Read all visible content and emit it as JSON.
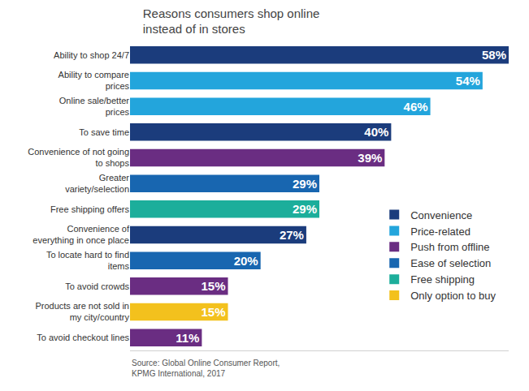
{
  "chart_data": {
    "type": "bar",
    "title": "Reasons consumers shop online instead of in stores",
    "orientation": "horizontal",
    "categories": [
      "Ability to shop 24/7",
      "Ability to compare prices",
      "Online sale/better prices",
      "To save time",
      "Convenience of not going to shops",
      "Greater variety/selection",
      "Free shipping offers",
      "Convenience of everything in once place",
      "To locate hard to find items",
      "To avoid crowds",
      "Products are not sold in my city/country",
      "To avoid checkout lines"
    ],
    "series": [
      {
        "name": "Convenience",
        "color": "#1b3c7c",
        "values": [
          58,
          null,
          null,
          40,
          null,
          null,
          null,
          27,
          null,
          null,
          null,
          null
        ],
        "value_labels": [
          "58%",
          null,
          null,
          "40%",
          null,
          null,
          null,
          "27%",
          null,
          null,
          null,
          null
        ]
      },
      {
        "name": "Price-related",
        "color": "#23a5dc",
        "values": [
          null,
          54,
          46,
          null,
          null,
          null,
          null,
          null,
          null,
          null,
          null,
          null
        ],
        "value_labels": [
          null,
          "54%",
          "46%",
          null,
          null,
          null,
          null,
          null,
          null,
          null,
          null,
          null
        ]
      },
      {
        "name": "Push from offline",
        "color": "#6a2d82",
        "values": [
          null,
          null,
          null,
          null,
          39,
          null,
          null,
          null,
          null,
          15,
          null,
          11
        ],
        "value_labels": [
          null,
          null,
          null,
          null,
          "39%",
          null,
          null,
          null,
          null,
          "15%",
          null,
          "11%"
        ]
      },
      {
        "name": "Ease of selection",
        "color": "#1866b0",
        "values": [
          null,
          null,
          null,
          null,
          null,
          29,
          null,
          null,
          20,
          null,
          null,
          null
        ],
        "value_labels": [
          null,
          null,
          null,
          null,
          null,
          "29%",
          null,
          null,
          "20%",
          null,
          null,
          null
        ]
      },
      {
        "name": "Free shipping",
        "color": "#1cae9b",
        "values": [
          null,
          null,
          null,
          null,
          null,
          null,
          29,
          null,
          null,
          null,
          null,
          null
        ],
        "value_labels": [
          null,
          null,
          null,
          null,
          null,
          null,
          "29%",
          null,
          null,
          null,
          null,
          null
        ]
      },
      {
        "name": "Only option to buy",
        "color": "#f3c11d",
        "values": [
          null,
          null,
          null,
          null,
          null,
          null,
          null,
          null,
          null,
          null,
          15,
          null
        ],
        "value_labels": [
          null,
          null,
          null,
          null,
          null,
          null,
          null,
          null,
          null,
          null,
          "15%",
          null
        ]
      }
    ],
    "xlim": [
      0,
      58
    ],
    "tick_labels": "y",
    "grid": false,
    "data_labels": true,
    "legend": "right",
    "annotations": [
      "Source: Global Online Consumer Report, KPMG International, 2017"
    ]
  }
}
